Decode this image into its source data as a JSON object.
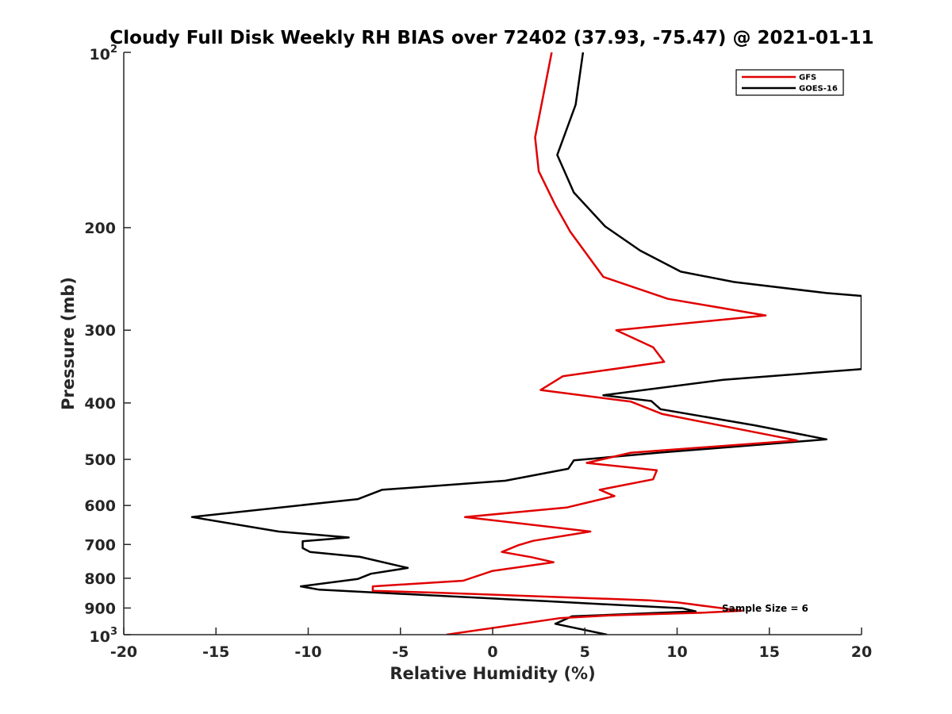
{
  "chart_data": {
    "type": "line",
    "title": "Cloudy Full Disk Weekly RH BIAS over 72402 (37.93, -75.47) @ 2021-01-11",
    "xlabel": "Relative Humidity (%)",
    "ylabel": "Pressure (mb)",
    "xlim": [
      -20,
      20
    ],
    "ylim": [
      100,
      1000
    ],
    "yscale": "log",
    "y_reversed": true,
    "grid": false,
    "legend": "top-right",
    "xticks": [
      "-20",
      "-15",
      "-10",
      "-5",
      "0",
      "5",
      "10",
      "15",
      "20"
    ],
    "yticks": [
      {
        "value": 100,
        "label": "10",
        "sup": "2"
      },
      {
        "value": 200,
        "label": "200",
        "sup": ""
      },
      {
        "value": 300,
        "label": "300",
        "sup": ""
      },
      {
        "value": 400,
        "label": "400",
        "sup": ""
      },
      {
        "value": 500,
        "label": "500",
        "sup": ""
      },
      {
        "value": 600,
        "label": "600",
        "sup": ""
      },
      {
        "value": 700,
        "label": "700",
        "sup": ""
      },
      {
        "value": 800,
        "label": "800",
        "sup": ""
      },
      {
        "value": 900,
        "label": "900",
        "sup": ""
      },
      {
        "value": 1000,
        "label": "10",
        "sup": "3"
      }
    ],
    "series": [
      {
        "name": "GFS",
        "color": "#e00000",
        "points": [
          [
            3.2,
            100
          ],
          [
            2.3,
            140
          ],
          [
            2.5,
            160
          ],
          [
            3.4,
            183
          ],
          [
            4.2,
            203
          ],
          [
            6.0,
            243
          ],
          [
            9.5,
            265
          ],
          [
            14.8,
            283
          ],
          [
            6.7,
            300
          ],
          [
            8.7,
            321
          ],
          [
            9.3,
            340
          ],
          [
            3.8,
            360
          ],
          [
            2.6,
            380
          ],
          [
            7.5,
            398
          ],
          [
            9.2,
            418
          ],
          [
            16.5,
            464
          ],
          [
            7.5,
            487
          ],
          [
            5.1,
            507
          ],
          [
            8.9,
            522
          ],
          [
            8.7,
            541
          ],
          [
            5.8,
            564
          ],
          [
            6.6,
            578
          ],
          [
            4.0,
            605
          ],
          [
            -1.5,
            628
          ],
          [
            5.3,
            665
          ],
          [
            2.2,
            690
          ],
          [
            1.4,
            702
          ],
          [
            0.5,
            721
          ],
          [
            2.1,
            736
          ],
          [
            3.3,
            751
          ],
          [
            0.0,
            777
          ],
          [
            -1.6,
            808
          ],
          [
            -6.5,
            826
          ],
          [
            -6.5,
            841
          ],
          [
            -3.0,
            847
          ],
          [
            8.5,
            873
          ],
          [
            10.0,
            880
          ],
          [
            13.5,
            910
          ],
          [
            11.3,
            917
          ],
          [
            6.3,
            927
          ],
          [
            3.6,
            937
          ],
          [
            -2.5,
            1000
          ]
        ]
      },
      {
        "name": "GOES-16",
        "color": "#000000",
        "points": [
          [
            4.9,
            100
          ],
          [
            4.5,
            123
          ],
          [
            3.5,
            150
          ],
          [
            4.4,
            174
          ],
          [
            6.1,
            199
          ],
          [
            8.0,
            219
          ],
          [
            10.2,
            238
          ],
          [
            13.1,
            248
          ],
          [
            18.1,
            259
          ],
          [
            20.0,
            262
          ],
          [
            20.0,
            350
          ],
          [
            12.5,
            365
          ],
          [
            6.0,
            388
          ],
          [
            8.6,
            397
          ],
          [
            9.1,
            410
          ],
          [
            14.2,
            437
          ],
          [
            18.1,
            462
          ],
          [
            9.0,
            487
          ],
          [
            4.4,
            502
          ],
          [
            4.1,
            519
          ],
          [
            0.7,
            544
          ],
          [
            -6.0,
            564
          ],
          [
            -7.3,
            585
          ],
          [
            -16.3,
            628
          ],
          [
            -11.6,
            665
          ],
          [
            -7.8,
            681
          ],
          [
            -10.3,
            691
          ],
          [
            -10.3,
            710
          ],
          [
            -9.9,
            721
          ],
          [
            -7.2,
            735
          ],
          [
            -4.6,
            768
          ],
          [
            -6.6,
            786
          ],
          [
            -7.3,
            802
          ],
          [
            -10.4,
            826
          ],
          [
            -9.4,
            837
          ],
          [
            2.9,
            876
          ],
          [
            10.3,
            901
          ],
          [
            11.0,
            912
          ],
          [
            4.3,
            930
          ],
          [
            3.4,
            958
          ],
          [
            6.2,
            1000
          ]
        ]
      }
    ],
    "annotation": "Sample Size = 6"
  }
}
